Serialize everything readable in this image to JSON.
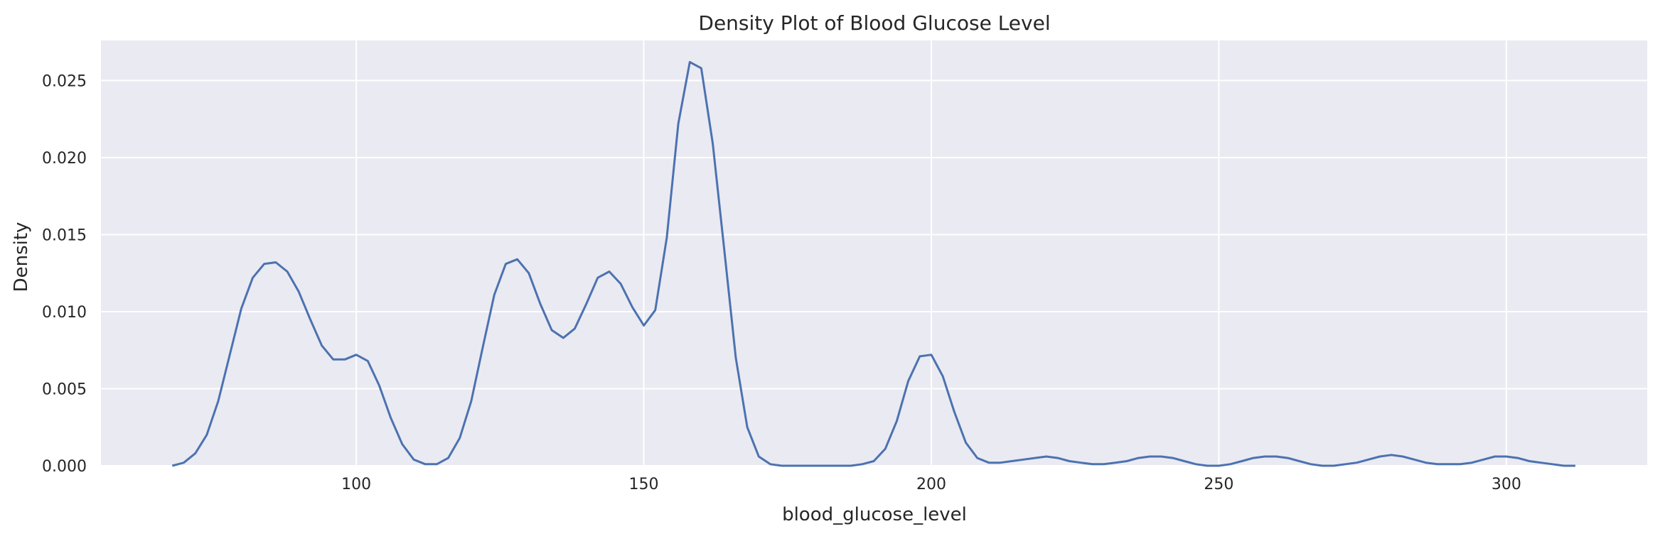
{
  "chart_data": {
    "type": "line",
    "title": "Density Plot of Blood Glucose Level",
    "xlabel": "blood_glucose_level",
    "ylabel": "Density",
    "xlim": [
      55.6,
      324.5
    ],
    "ylim": [
      0,
      0.0276
    ],
    "xticks": [
      100,
      150,
      200,
      250,
      300
    ],
    "xtick_labels": [
      "100",
      "150",
      "200",
      "250",
      "300"
    ],
    "yticks": [
      0.0,
      0.005,
      0.01,
      0.015,
      0.02,
      0.025
    ],
    "ytick_labels": [
      "0.000",
      "0.005",
      "0.010",
      "0.015",
      "0.020",
      "0.025"
    ],
    "grid": true,
    "colors": {
      "line": "#4c72b0",
      "background": "#eaeaf2",
      "grid": "#ffffff"
    },
    "series": [
      {
        "x": [
          68,
          70,
          72,
          74,
          76,
          78,
          80,
          82,
          84,
          86,
          88,
          90,
          92,
          94,
          96,
          98,
          100,
          102,
          104,
          106,
          108,
          110,
          112,
          114,
          116,
          118,
          120,
          122,
          124,
          126,
          128,
          130,
          132,
          134,
          136,
          138,
          140,
          142,
          144,
          146,
          148,
          150,
          152,
          154,
          156,
          158,
          160,
          162,
          164,
          166,
          168,
          170,
          172,
          174,
          176,
          178,
          180,
          182,
          184,
          186,
          188,
          190,
          192,
          194,
          196,
          198,
          200,
          202,
          204,
          206,
          208,
          210,
          212,
          214,
          216,
          218,
          220,
          222,
          224,
          226,
          228,
          230,
          232,
          234,
          236,
          238,
          240,
          242,
          244,
          246,
          248,
          250,
          252,
          254,
          256,
          258,
          260,
          262,
          264,
          266,
          268,
          270,
          272,
          274,
          276,
          278,
          280,
          282,
          284,
          286,
          288,
          290,
          292,
          294,
          296,
          298,
          300,
          302,
          304,
          306,
          308,
          310,
          312
        ],
        "y": [
          0.0,
          0.0002,
          0.0008,
          0.002,
          0.0042,
          0.0072,
          0.0102,
          0.0122,
          0.0131,
          0.0132,
          0.0126,
          0.0113,
          0.0095,
          0.0078,
          0.0069,
          0.0069,
          0.0072,
          0.0068,
          0.0052,
          0.0031,
          0.0014,
          0.0004,
          0.0001,
          0.0001,
          0.0005,
          0.0018,
          0.0042,
          0.0077,
          0.0111,
          0.0131,
          0.0134,
          0.0125,
          0.0105,
          0.0088,
          0.0083,
          0.0089,
          0.0105,
          0.0122,
          0.0126,
          0.0118,
          0.0103,
          0.0091,
          0.0101,
          0.0148,
          0.0222,
          0.0262,
          0.0258,
          0.0209,
          0.014,
          0.007,
          0.0025,
          0.0006,
          0.0001,
          0.0,
          0.0,
          0.0,
          0.0,
          0.0,
          0.0,
          0.0,
          0.0001,
          0.0003,
          0.0011,
          0.0029,
          0.0055,
          0.0071,
          0.0072,
          0.0058,
          0.0035,
          0.0015,
          0.0005,
          0.0002,
          0.0002,
          0.0003,
          0.0004,
          0.0005,
          0.0006,
          0.0005,
          0.0003,
          0.0002,
          0.0001,
          0.0001,
          0.0002,
          0.0003,
          0.0005,
          0.0006,
          0.0006,
          0.0005,
          0.0003,
          0.0001,
          0.0,
          0.0,
          0.0001,
          0.0003,
          0.0005,
          0.0006,
          0.0006,
          0.0005,
          0.0003,
          0.0001,
          0.0,
          0.0,
          0.0001,
          0.0002,
          0.0004,
          0.0006,
          0.0007,
          0.0006,
          0.0004,
          0.0002,
          0.0001,
          0.0001,
          0.0001,
          0.0002,
          0.0004,
          0.0006,
          0.0006,
          0.0005,
          0.0003,
          0.0002,
          0.0001,
          0.0,
          0.0
        ]
      }
    ]
  }
}
